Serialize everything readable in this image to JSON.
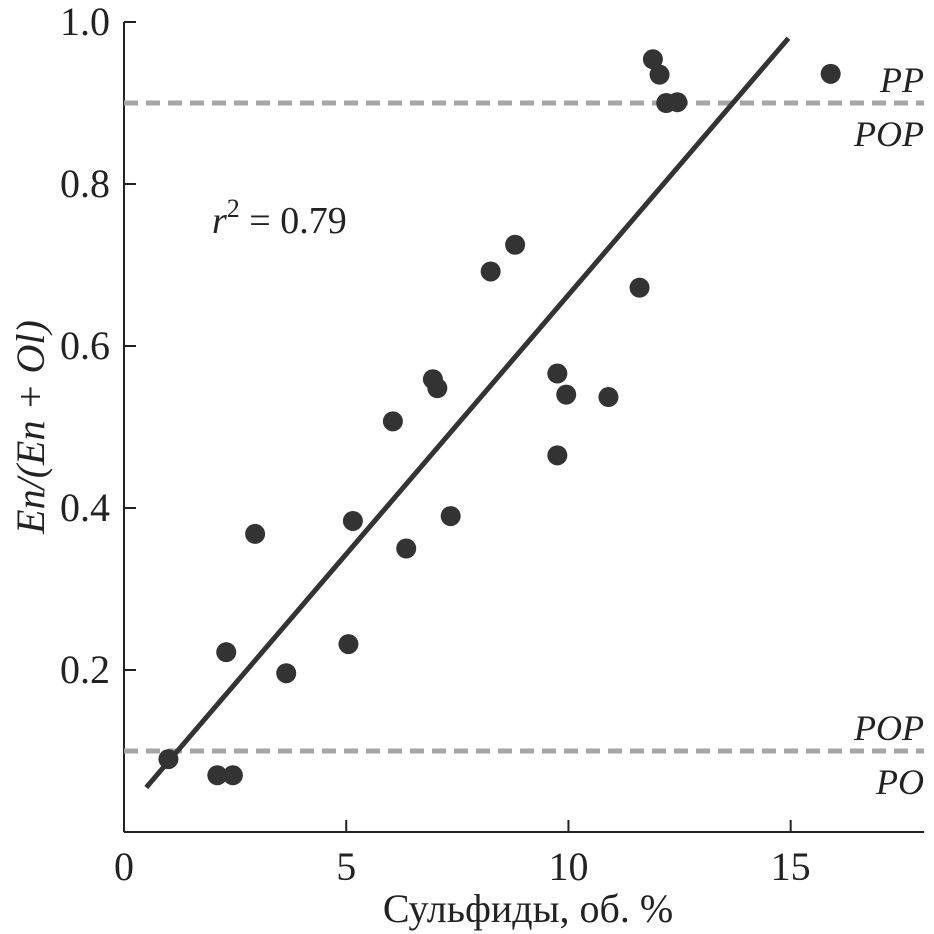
{
  "chart_data": {
    "type": "scatter",
    "xlabel": "Сульфиды, об. %",
    "ylabel": "En/(En + Ol)",
    "xlim": [
      0,
      18
    ],
    "ylim": [
      0,
      1.0
    ],
    "x_ticks": [
      0,
      5,
      10,
      15
    ],
    "x_tick_labels": [
      "0",
      "5",
      "10",
      "15"
    ],
    "y_ticks": [
      0.2,
      0.4,
      0.6,
      0.8,
      1.0
    ],
    "y_tick_labels": [
      "0.2",
      "0.4",
      "0.6",
      "0.8",
      "1.0"
    ],
    "grid": false,
    "points": [
      {
        "x": 1.0,
        "y": 0.09
      },
      {
        "x": 2.1,
        "y": 0.07
      },
      {
        "x": 2.45,
        "y": 0.07
      },
      {
        "x": 2.3,
        "y": 0.222
      },
      {
        "x": 2.95,
        "y": 0.368
      },
      {
        "x": 3.65,
        "y": 0.196
      },
      {
        "x": 5.05,
        "y": 0.232
      },
      {
        "x": 5.15,
        "y": 0.384
      },
      {
        "x": 6.05,
        "y": 0.507
      },
      {
        "x": 6.35,
        "y": 0.35
      },
      {
        "x": 6.95,
        "y": 0.559
      },
      {
        "x": 7.05,
        "y": 0.548
      },
      {
        "x": 7.35,
        "y": 0.39
      },
      {
        "x": 8.25,
        "y": 0.692
      },
      {
        "x": 8.8,
        "y": 0.725
      },
      {
        "x": 9.75,
        "y": 0.566
      },
      {
        "x": 9.95,
        "y": 0.54
      },
      {
        "x": 9.75,
        "y": 0.465
      },
      {
        "x": 10.9,
        "y": 0.537
      },
      {
        "x": 11.6,
        "y": 0.672
      },
      {
        "x": 11.9,
        "y": 0.954
      },
      {
        "x": 12.05,
        "y": 0.935
      },
      {
        "x": 12.2,
        "y": 0.9
      },
      {
        "x": 12.45,
        "y": 0.901
      },
      {
        "x": 15.9,
        "y": 0.936
      }
    ],
    "regression": {
      "x": [
        0.5,
        14.95
      ],
      "y": [
        0.055,
        0.98
      ]
    },
    "r2_label": {
      "r": "r",
      "exp": "2",
      "rest": " = 0.79"
    },
    "thresholds": [
      {
        "y": 0.9,
        "label_above": "PP",
        "label_below": "POP"
      },
      {
        "y": 0.1,
        "label_above": "POP",
        "label_below": "PO"
      }
    ],
    "colors": {
      "point": "#333333",
      "line": "#333333",
      "dashed": "#a6a6a6",
      "axis": "#222222"
    }
  }
}
